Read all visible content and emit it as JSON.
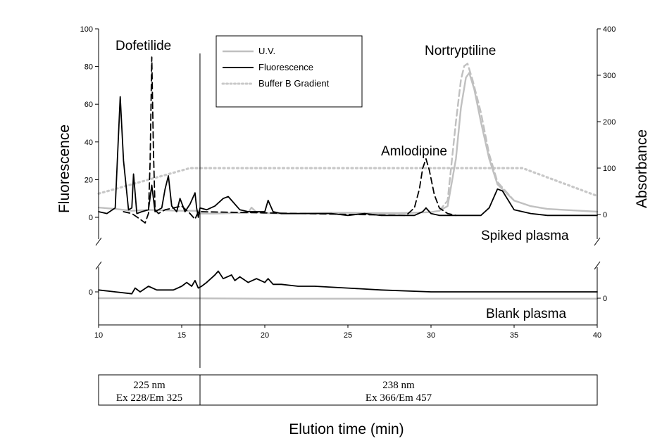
{
  "chart_data": {
    "type": "line",
    "xlabel": "Elution time (min)",
    "ylabel_left": "Fluorescence",
    "ylabel_right": "Absorbance",
    "xlim": [
      10,
      40
    ],
    "x_ticks": [
      "10",
      "15",
      "20",
      "25",
      "30",
      "35",
      "40"
    ],
    "ylim_left": [
      0,
      100
    ],
    "y_ticks_left": [
      "0",
      "20",
      "40",
      "60",
      "80",
      "100"
    ],
    "ylim_right": [
      0,
      400
    ],
    "y_ticks_right": [
      "0",
      "100",
      "200",
      "300",
      "400"
    ],
    "blank_tick_left": "0",
    "blank_tick_right": "0",
    "legend_position": "top-center",
    "legend": {
      "uv": "U.V.",
      "fluorescence": "Fluorescence",
      "gradient": "Buffer B Gradient"
    },
    "panel_labels": {
      "spiked": "Spiked plasma",
      "blank": "Blank plasma"
    },
    "annotations": [
      {
        "label": "Dofetilide",
        "x": 13.2
      },
      {
        "label": "Amlodipine",
        "x": 29.7
      },
      {
        "label": "Nortryptiline",
        "x": 32.2
      }
    ],
    "divider_x": 16.1,
    "colors": {
      "uv": "#c0c0c0",
      "fluorescence": "#000000",
      "gradient": "#c8c8c8"
    },
    "detection_windows": [
      {
        "x_range": [
          10,
          16.1
        ],
        "line1": "225 nm",
        "line2": "Ex 228/Em 325"
      },
      {
        "x_range": [
          16.1,
          40
        ],
        "line1": "238 nm",
        "line2": "Ex 366/Em 457"
      }
    ],
    "series": [
      {
        "name": "Buffer B Gradient",
        "axis": "right",
        "panel": "spiked",
        "style": "dotted",
        "x": [
          10,
          11,
          12,
          13,
          14,
          15,
          15.5,
          16,
          20,
          25,
          30,
          35.5,
          37,
          38.5,
          40
        ],
        "y": [
          45,
          55,
          65,
          75,
          85,
          95,
          100,
          100,
          100,
          100,
          100,
          100,
          80,
          60,
          40
        ]
      },
      {
        "name": "U.V.",
        "axis": "right",
        "panel": "spiked",
        "style": "solid",
        "x": [
          10,
          11,
          12,
          13,
          14,
          15,
          16,
          16.1,
          17,
          18,
          19,
          19.2,
          19.5,
          20,
          21,
          22,
          23,
          24,
          25,
          26,
          27,
          28,
          29,
          30,
          30.5,
          31,
          31.5,
          31.8,
          32.1,
          32.3,
          32.6,
          33,
          33.5,
          34,
          35,
          36,
          37,
          38,
          39,
          40
        ],
        "y": [
          15,
          12,
          8,
          10,
          9,
          8,
          8,
          2,
          2,
          3,
          4,
          15,
          5,
          3,
          2,
          2,
          3,
          4,
          4,
          3,
          3,
          3,
          4,
          5,
          8,
          18,
          120,
          230,
          295,
          305,
          270,
          200,
          120,
          65,
          30,
          18,
          12,
          10,
          8,
          6
        ]
      },
      {
        "name": "U.V. (dashed)",
        "axis": "right",
        "panel": "spiked",
        "style": "dashed",
        "x": [
          30.5,
          31,
          31.5,
          31.8,
          32,
          32.2,
          32.5,
          33,
          33.5,
          34,
          35
        ],
        "y": [
          8,
          30,
          200,
          290,
          320,
          325,
          290,
          220,
          130,
          70,
          30
        ]
      },
      {
        "name": "Fluorescence",
        "axis": "left",
        "panel": "spiked",
        "style": "solid",
        "x": [
          10,
          10.5,
          11,
          11.3,
          11.5,
          11.8,
          12,
          12.1,
          12.3,
          12.6,
          13,
          13.2,
          13.4,
          13.8,
          14,
          14.2,
          14.4,
          14.7,
          14.9,
          15.2,
          15.5,
          15.8,
          15.9,
          16,
          16.1,
          16.5,
          17,
          17.5,
          17.8,
          18,
          18.5,
          19,
          19.5,
          20,
          20.2,
          20.5,
          21,
          22,
          23,
          24,
          25,
          26,
          27,
          28,
          29,
          29.5,
          29.7,
          30,
          30.5,
          31,
          32,
          33,
          33.5,
          34,
          34.3,
          35,
          36,
          37,
          38,
          39,
          40
        ],
        "y": [
          3,
          2,
          5,
          64,
          30,
          4,
          5,
          23,
          2,
          3,
          4,
          17,
          3,
          5,
          15,
          22,
          6,
          3,
          10,
          3,
          7,
          13,
          5,
          0,
          5,
          4,
          6,
          10,
          11,
          9,
          4,
          3,
          3,
          3,
          9,
          3,
          2,
          2,
          2,
          2,
          1,
          2,
          1,
          1,
          1,
          3,
          5,
          2,
          1,
          1,
          1,
          1,
          5,
          15,
          14,
          4,
          2,
          1,
          1,
          1,
          1
        ]
      },
      {
        "name": "Fluorescence (dashed)",
        "axis": "left",
        "panel": "spiked",
        "style": "dashed",
        "x": [
          11.5,
          12,
          12.5,
          12.8,
          13,
          13.1,
          13.2,
          13.3,
          13.4,
          13.6,
          14,
          15,
          15.5,
          15.8,
          16,
          28.5,
          29,
          29.3,
          29.5,
          29.7,
          29.9,
          30.2,
          30.5,
          31,
          31.5
        ],
        "y": [
          3,
          2,
          -1,
          -3,
          2,
          30,
          85,
          35,
          4,
          2,
          4,
          6,
          2,
          -1,
          3,
          1,
          5,
          15,
          26,
          31,
          25,
          12,
          5,
          2,
          1
        ]
      },
      {
        "name": "Fluorescence (blank)",
        "axis": "left",
        "panel": "blank",
        "style": "solid",
        "x": [
          10,
          11,
          12,
          12.2,
          12.5,
          13,
          13.5,
          14,
          14.5,
          15,
          15.3,
          15.6,
          15.8,
          16,
          16.2,
          16.5,
          17,
          17.2,
          17.5,
          18,
          18.2,
          18.5,
          19,
          19.5,
          20,
          20.2,
          20.5,
          21,
          22,
          23,
          25,
          27,
          30,
          33,
          36,
          40
        ],
        "y": [
          1,
          0,
          -1,
          2,
          0,
          3,
          1,
          1,
          1,
          3,
          5,
          3,
          6,
          2,
          3,
          5,
          9,
          11,
          7,
          9,
          6,
          8,
          5,
          7,
          5,
          7,
          4,
          4,
          3,
          3,
          2,
          1,
          0,
          0,
          0,
          0
        ]
      },
      {
        "name": "U.V. (blank)",
        "axis": "right",
        "panel": "blank",
        "style": "solid",
        "x": [
          10,
          15,
          20,
          25,
          30,
          35,
          40
        ],
        "y": [
          0,
          0,
          -1,
          -1,
          -1,
          -1,
          -1
        ]
      }
    ]
  }
}
